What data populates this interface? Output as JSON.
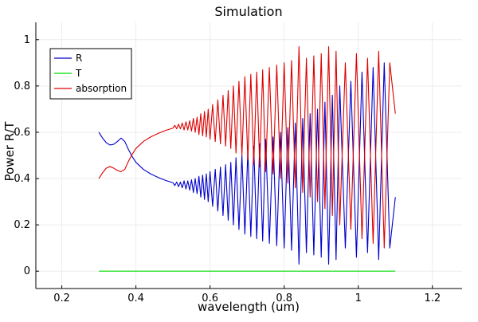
{
  "chart_data": {
    "type": "line",
    "title": "Simulation",
    "xlabel": "wavelength (um)",
    "ylabel": "Power R/T",
    "xlim": [
      0.13,
      1.28
    ],
    "ylim": [
      -0.075,
      1.075
    ],
    "xticks": [
      0.2,
      0.4,
      0.6,
      0.8,
      1.0,
      1.2
    ],
    "xtick_labels": [
      "0.2",
      "0.4",
      "0.6",
      "0.8",
      "1",
      "1.2"
    ],
    "yticks": [
      0,
      0.2,
      0.4,
      0.6,
      0.8,
      1.0
    ],
    "ytick_labels": [
      "0",
      "0.2",
      "0.4",
      "0.6",
      "0.8",
      "1"
    ],
    "grid": true,
    "legend_position": "top-left",
    "series": [
      {
        "name": "R",
        "color": "#0000cc",
        "x": [
          0.3,
          0.31,
          0.32,
          0.33,
          0.34,
          0.35,
          0.36,
          0.37,
          0.38,
          0.39,
          0.4,
          0.42,
          0.44,
          0.46,
          0.48,
          0.5,
          0.505,
          0.51,
          0.515,
          0.52,
          0.525,
          0.53,
          0.535,
          0.54,
          0.545,
          0.55,
          0.555,
          0.56,
          0.565,
          0.57,
          0.575,
          0.58,
          0.585,
          0.59,
          0.595,
          0.6,
          0.607,
          0.614,
          0.621,
          0.628,
          0.635,
          0.642,
          0.649,
          0.656,
          0.663,
          0.67,
          0.678,
          0.686,
          0.694,
          0.702,
          0.71,
          0.718,
          0.726,
          0.734,
          0.742,
          0.75,
          0.76,
          0.77,
          0.78,
          0.79,
          0.8,
          0.81,
          0.82,
          0.83,
          0.84,
          0.85,
          0.86,
          0.87,
          0.88,
          0.89,
          0.9,
          0.91,
          0.92,
          0.93,
          0.94,
          0.95,
          0.965,
          0.98,
          0.995,
          1.01,
          1.025,
          1.04,
          1.055,
          1.07,
          1.085,
          1.1
        ],
        "y": [
          0.6,
          0.575,
          0.555,
          0.545,
          0.548,
          0.56,
          0.575,
          0.56,
          0.525,
          0.495,
          0.47,
          0.44,
          0.42,
          0.405,
          0.392,
          0.382,
          0.37,
          0.385,
          0.365,
          0.385,
          0.36,
          0.39,
          0.355,
          0.39,
          0.35,
          0.395,
          0.34,
          0.4,
          0.335,
          0.41,
          0.32,
          0.415,
          0.31,
          0.42,
          0.3,
          0.43,
          0.28,
          0.44,
          0.26,
          0.45,
          0.24,
          0.46,
          0.22,
          0.47,
          0.2,
          0.49,
          0.18,
          0.5,
          0.16,
          0.52,
          0.15,
          0.54,
          0.14,
          0.55,
          0.13,
          0.57,
          0.12,
          0.58,
          0.11,
          0.6,
          0.1,
          0.62,
          0.09,
          0.64,
          0.03,
          0.66,
          0.08,
          0.68,
          0.07,
          0.7,
          0.06,
          0.73,
          0.03,
          0.76,
          0.05,
          0.8,
          0.1,
          0.82,
          0.06,
          0.86,
          0.08,
          0.88,
          0.05,
          0.9,
          0.1,
          0.32
        ]
      },
      {
        "name": "T",
        "color": "#00dd00",
        "x": [
          0.3,
          1.1
        ],
        "y": [
          0.0,
          0.0
        ]
      },
      {
        "name": "absorption",
        "color": "#dd0000",
        "x": [
          0.3,
          0.31,
          0.32,
          0.33,
          0.34,
          0.35,
          0.36,
          0.37,
          0.38,
          0.39,
          0.4,
          0.42,
          0.44,
          0.46,
          0.48,
          0.5,
          0.505,
          0.51,
          0.515,
          0.52,
          0.525,
          0.53,
          0.535,
          0.54,
          0.545,
          0.55,
          0.555,
          0.56,
          0.565,
          0.57,
          0.575,
          0.58,
          0.585,
          0.59,
          0.595,
          0.6,
          0.607,
          0.614,
          0.621,
          0.628,
          0.635,
          0.642,
          0.649,
          0.656,
          0.663,
          0.67,
          0.678,
          0.686,
          0.694,
          0.702,
          0.71,
          0.718,
          0.726,
          0.734,
          0.742,
          0.75,
          0.76,
          0.77,
          0.78,
          0.79,
          0.8,
          0.81,
          0.82,
          0.83,
          0.84,
          0.85,
          0.86,
          0.87,
          0.88,
          0.89,
          0.9,
          0.91,
          0.92,
          0.93,
          0.94,
          0.95,
          0.965,
          0.98,
          0.995,
          1.01,
          1.025,
          1.04,
          1.055,
          1.07,
          1.085,
          1.1
        ],
        "y": [
          0.4,
          0.425,
          0.445,
          0.452,
          0.445,
          0.435,
          0.43,
          0.44,
          0.475,
          0.505,
          0.53,
          0.56,
          0.58,
          0.595,
          0.608,
          0.618,
          0.63,
          0.615,
          0.635,
          0.615,
          0.64,
          0.61,
          0.645,
          0.61,
          0.65,
          0.605,
          0.66,
          0.6,
          0.665,
          0.59,
          0.68,
          0.585,
          0.69,
          0.58,
          0.7,
          0.57,
          0.72,
          0.56,
          0.74,
          0.55,
          0.76,
          0.54,
          0.78,
          0.53,
          0.8,
          0.51,
          0.82,
          0.5,
          0.84,
          0.48,
          0.85,
          0.46,
          0.86,
          0.45,
          0.87,
          0.43,
          0.88,
          0.42,
          0.89,
          0.4,
          0.9,
          0.38,
          0.91,
          0.36,
          0.97,
          0.34,
          0.92,
          0.32,
          0.93,
          0.3,
          0.94,
          0.27,
          0.97,
          0.24,
          0.95,
          0.2,
          0.9,
          0.18,
          0.94,
          0.14,
          0.92,
          0.12,
          0.95,
          0.1,
          0.9,
          0.68
        ]
      }
    ]
  }
}
